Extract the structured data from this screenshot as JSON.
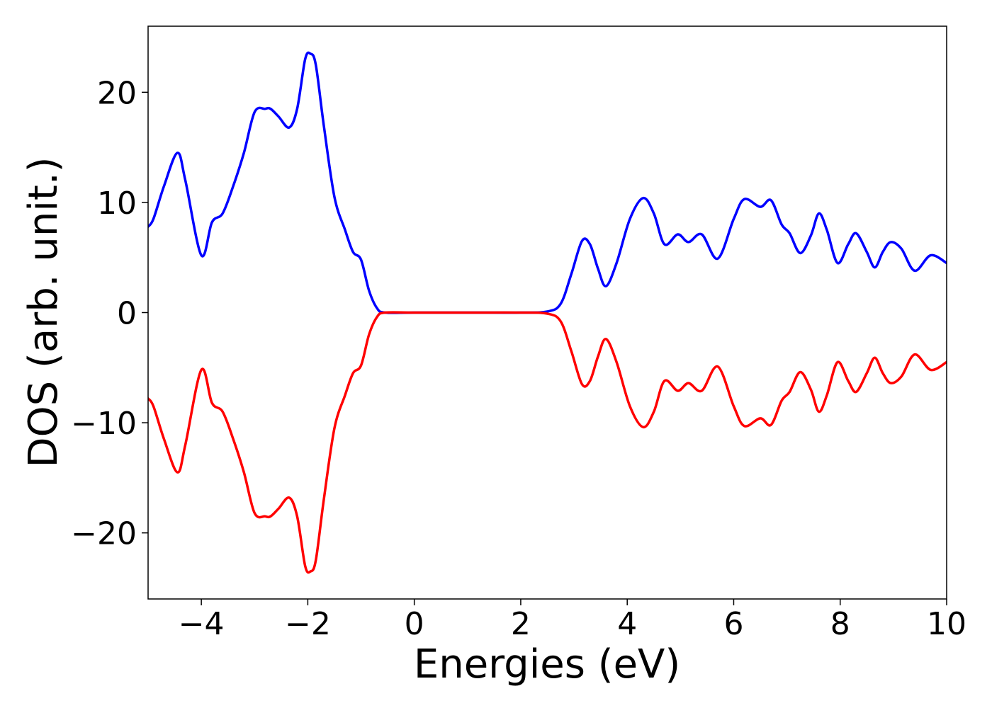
{
  "chart_data": {
    "type": "line",
    "xlabel": "Energies (eV)",
    "ylabel": "DOS (arb. unit.)",
    "xlim": [
      -5,
      10
    ],
    "ylim": [
      -26,
      26
    ],
    "xticks": [
      -4,
      -2,
      0,
      2,
      4,
      6,
      8,
      10
    ],
    "xtick_labels": [
      "−4",
      "−2",
      "0",
      "2",
      "4",
      "6",
      "8",
      "10"
    ],
    "yticks": [
      -20,
      -10,
      0,
      10,
      20
    ],
    "ytick_labels": [
      "−20",
      "−10",
      "0",
      "10",
      "20"
    ],
    "grid": false,
    "series": [
      {
        "color": "#0000ff",
        "x": [
          -5.0,
          -4.9,
          -4.7,
          -4.45,
          -4.3,
          -4.0,
          -3.8,
          -3.6,
          -3.4,
          -3.2,
          -3.0,
          -2.8,
          -2.7,
          -2.55,
          -2.35,
          -2.2,
          -2.05,
          -1.95,
          -1.85,
          -1.7,
          -1.5,
          -1.3,
          -1.15,
          -1.0,
          -0.85,
          -0.7,
          -0.55,
          0.0,
          1.0,
          2.0,
          2.5,
          2.75,
          2.95,
          3.15,
          3.3,
          3.45,
          3.6,
          3.8,
          4.05,
          4.3,
          4.5,
          4.7,
          4.95,
          5.15,
          5.4,
          5.7,
          6.0,
          6.2,
          6.5,
          6.7,
          6.9,
          7.05,
          7.25,
          7.45,
          7.6,
          7.75,
          7.95,
          8.15,
          8.3,
          8.5,
          8.65,
          8.8,
          8.95,
          9.15,
          9.4,
          9.7,
          10.0
        ],
        "y": [
          7.8,
          8.5,
          11.5,
          14.5,
          12.0,
          5.2,
          8.2,
          9.0,
          11.5,
          14.5,
          18.2,
          18.5,
          18.5,
          17.8,
          16.8,
          18.5,
          23.0,
          23.5,
          22.5,
          17.0,
          10.5,
          7.5,
          5.5,
          4.8,
          2.0,
          0.4,
          0.0,
          0.0,
          0.0,
          0.0,
          0.1,
          0.8,
          3.5,
          6.5,
          6.2,
          4.0,
          2.4,
          4.5,
          8.5,
          10.4,
          9.0,
          6.2,
          7.1,
          6.4,
          7.1,
          4.9,
          8.5,
          10.3,
          9.6,
          10.2,
          8.0,
          7.2,
          5.4,
          7.0,
          9.0,
          7.5,
          4.5,
          6.2,
          7.2,
          5.5,
          4.1,
          5.5,
          6.4,
          5.8,
          3.8,
          5.2,
          4.5
        ]
      },
      {
        "color": "#ff0000",
        "x": [
          -5.0,
          -4.9,
          -4.7,
          -4.45,
          -4.3,
          -4.0,
          -3.8,
          -3.6,
          -3.4,
          -3.2,
          -3.0,
          -2.8,
          -2.7,
          -2.55,
          -2.35,
          -2.2,
          -2.05,
          -1.95,
          -1.85,
          -1.7,
          -1.5,
          -1.3,
          -1.15,
          -1.0,
          -0.85,
          -0.7,
          -0.55,
          0.0,
          1.0,
          2.0,
          2.5,
          2.75,
          2.95,
          3.15,
          3.3,
          3.45,
          3.6,
          3.8,
          4.05,
          4.3,
          4.5,
          4.7,
          4.95,
          5.15,
          5.4,
          5.7,
          6.0,
          6.2,
          6.5,
          6.7,
          6.9,
          7.05,
          7.25,
          7.45,
          7.6,
          7.75,
          7.95,
          8.15,
          8.3,
          8.5,
          8.65,
          8.8,
          8.95,
          9.15,
          9.4,
          9.7,
          10.0
        ],
        "y": [
          -7.8,
          -8.5,
          -11.5,
          -14.5,
          -12.0,
          -5.2,
          -8.2,
          -9.0,
          -11.5,
          -14.5,
          -18.2,
          -18.5,
          -18.5,
          -17.8,
          -16.8,
          -18.5,
          -23.0,
          -23.5,
          -22.5,
          -17.0,
          -10.5,
          -7.5,
          -5.5,
          -4.8,
          -2.0,
          -0.4,
          0.0,
          0.0,
          0.0,
          0.0,
          -0.1,
          -0.8,
          -3.5,
          -6.5,
          -6.2,
          -4.0,
          -2.4,
          -4.5,
          -8.5,
          -10.4,
          -9.0,
          -6.2,
          -7.1,
          -6.4,
          -7.1,
          -4.9,
          -8.5,
          -10.3,
          -9.6,
          -10.2,
          -8.0,
          -7.2,
          -5.4,
          -7.0,
          -9.0,
          -7.5,
          -4.5,
          -6.2,
          -7.2,
          -5.5,
          -4.1,
          -5.5,
          -6.4,
          -5.8,
          -3.8,
          -5.2,
          -4.5
        ]
      }
    ]
  }
}
